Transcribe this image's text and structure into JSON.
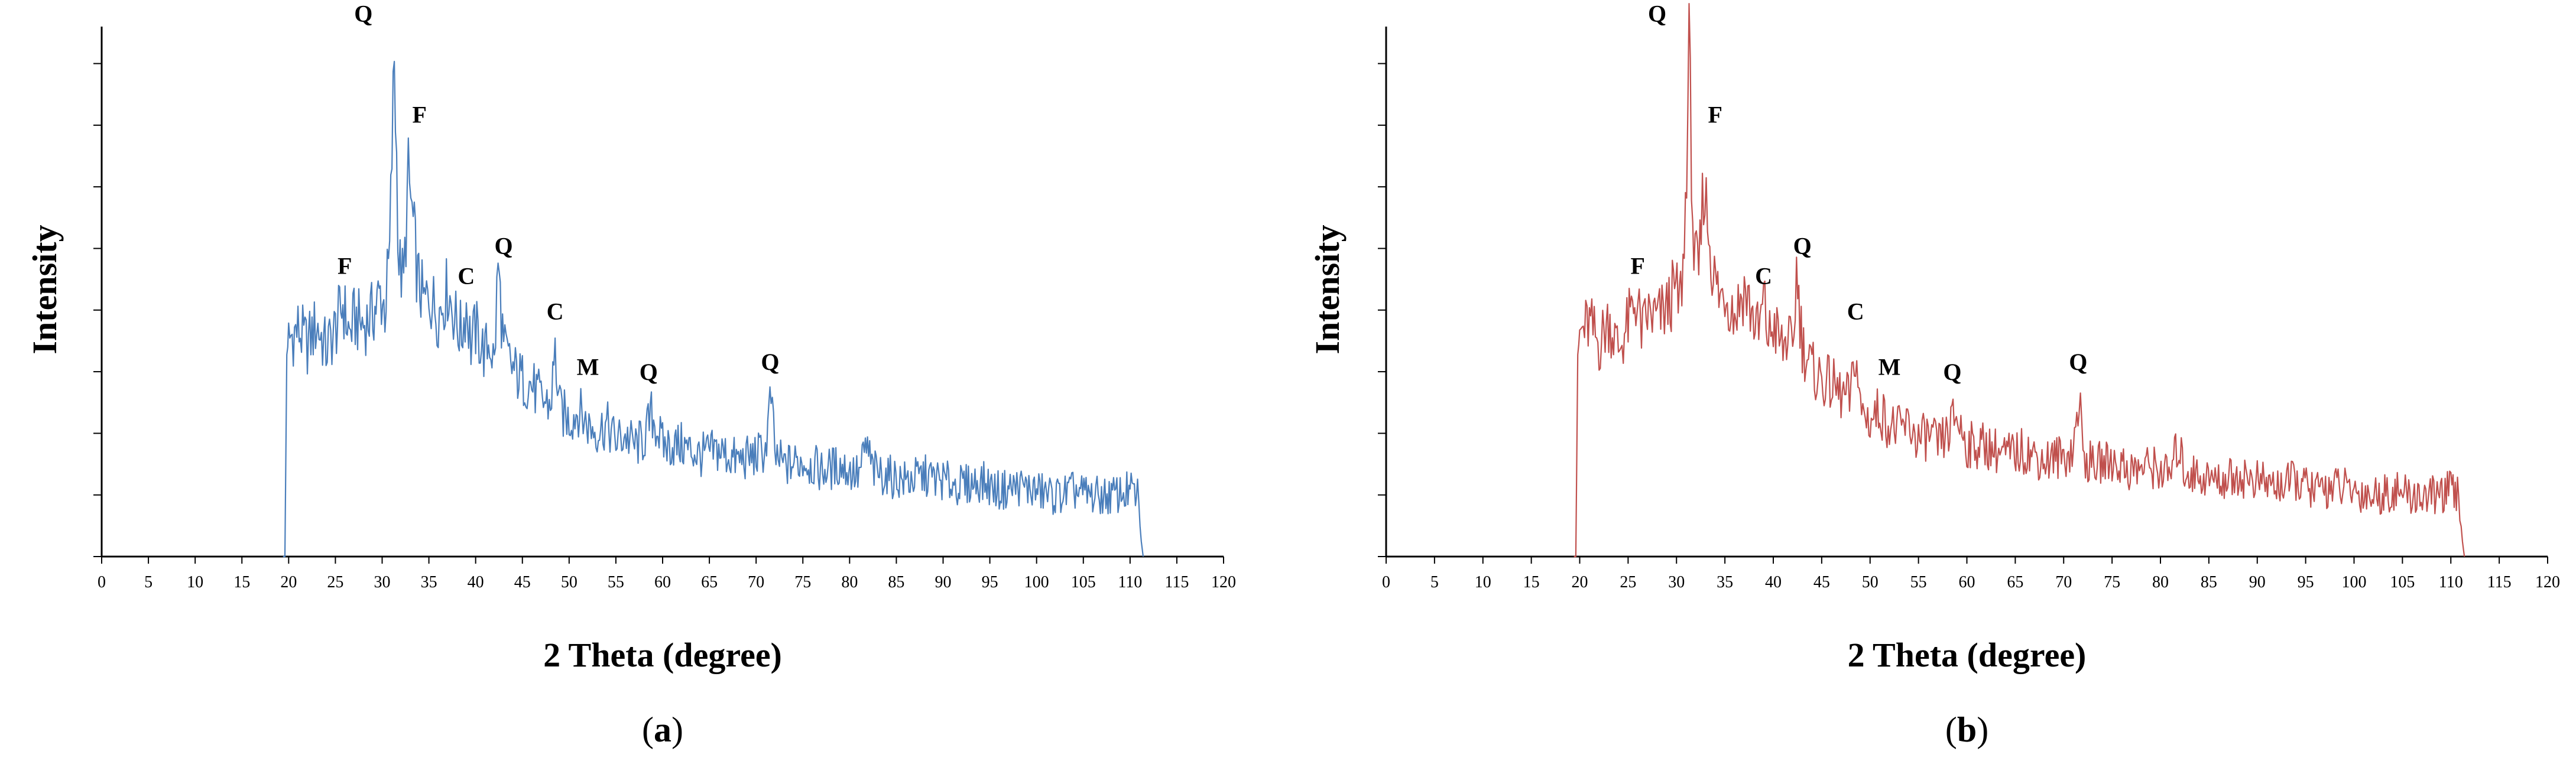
{
  "chart_data": [
    {
      "type": "line",
      "panel_label": "a",
      "xlabel": "2 Theta (degree)",
      "ylabel": "Intensity",
      "xlim": [
        0,
        120
      ],
      "xticks": [
        0,
        5,
        10,
        15,
        20,
        25,
        30,
        35,
        40,
        45,
        50,
        55,
        60,
        65,
        70,
        75,
        80,
        85,
        90,
        95,
        100,
        105,
        110,
        115,
        120
      ],
      "y_tick_labels_shown": false,
      "grid": false,
      "legend": "none",
      "color": "#4a7ebb",
      "series": [
        {
          "values_note": "relative intensity (no y-axis values printed), read on 0-100 scale",
          "x": [
            19.4,
            19.6,
            19.8,
            20,
            21,
            22,
            23,
            24,
            25,
            25.8,
            26.5,
            27,
            28,
            29,
            29.8,
            30.3,
            30.8,
            31.3,
            31.8,
            32.3,
            32.8,
            33.2,
            33.8,
            34.5,
            35,
            36,
            37,
            38,
            38.5,
            39,
            39.5,
            40,
            41,
            41.5,
            42,
            42.4,
            43,
            44,
            45,
            46,
            47,
            48,
            48.5,
            49,
            50,
            51,
            52,
            53,
            54,
            55,
            56,
            57,
            58,
            58.8,
            59.5,
            60,
            62,
            64,
            66,
            68,
            70,
            71,
            71.6,
            72,
            73,
            75,
            77,
            79,
            81,
            81.8,
            82.5,
            84,
            86,
            88,
            90,
            92,
            94,
            96,
            98,
            100,
            102,
            104,
            106,
            108,
            110,
            110.8,
            111.2,
            111.4
          ],
          "y": [
            0,
            0,
            40,
            43,
            45,
            42,
            46,
            41,
            45,
            50,
            44,
            47,
            46,
            48,
            52,
            49,
            60,
            99,
            58,
            54,
            75,
            68,
            55,
            50,
            52,
            48,
            53,
            46,
            44,
            50,
            42,
            45,
            40,
            43,
            38,
            58,
            41,
            37,
            35,
            34,
            31,
            30,
            40,
            29,
            27,
            29,
            26,
            25,
            26,
            23,
            24,
            22,
            23,
            28,
            25,
            22,
            22,
            20,
            21,
            19,
            20,
            21,
            32,
            20,
            18,
            19,
            17,
            18,
            16,
            22,
            17,
            16,
            15,
            16,
            15,
            14,
            15,
            13,
            14,
            13,
            12,
            13,
            12,
            12,
            13,
            12,
            3,
            0
          ]
        }
      ],
      "annotations": [
        {
          "label": "F",
          "x": 26
        },
        {
          "label": "Q",
          "x": 28
        },
        {
          "label": "F",
          "x": 34
        },
        {
          "label": "C",
          "x": 39
        },
        {
          "label": "Q",
          "x": 43
        },
        {
          "label": "C",
          "x": 48.5
        },
        {
          "label": "M",
          "x": 52
        },
        {
          "label": "Q",
          "x": 58.5
        },
        {
          "label": "Q",
          "x": 71.5
        }
      ]
    },
    {
      "type": "line",
      "panel_label": "b",
      "xlabel": "2 Theta (degree)",
      "ylabel": "Intensity",
      "xlim": [
        0,
        120
      ],
      "xticks": [
        0,
        5,
        10,
        15,
        20,
        25,
        30,
        35,
        40,
        45,
        50,
        55,
        60,
        65,
        70,
        75,
        80,
        85,
        90,
        95,
        100,
        105,
        110,
        115,
        120
      ],
      "y_tick_labels_shown": false,
      "grid": false,
      "legend": "none",
      "color": "#c0504d",
      "series": [
        {
          "values_note": "relative intensity (no y-axis values printed), read on 0-100 scale",
          "x": [
            19.4,
            19.6,
            19.8,
            20,
            21,
            22,
            23,
            24,
            25,
            25.8,
            26.5,
            27,
            28,
            29,
            29.8,
            30.3,
            30.8,
            31.3,
            31.8,
            32.3,
            32.8,
            33.2,
            33.8,
            34.5,
            35,
            36,
            37,
            38,
            38.5,
            39,
            39.5,
            40,
            41,
            41.5,
            42,
            42.4,
            43,
            44,
            45,
            46,
            47,
            48,
            48.5,
            49,
            50,
            51,
            52,
            53,
            54,
            55,
            56,
            57,
            58,
            58.8,
            59.5,
            60,
            62,
            64,
            66,
            68,
            70,
            71,
            71.6,
            72,
            73,
            75,
            77,
            79,
            81,
            81.8,
            82.5,
            84,
            86,
            88,
            90,
            92,
            94,
            96,
            98,
            100,
            102,
            104,
            106,
            108,
            110,
            110.8,
            111.2,
            111.4
          ],
          "y": [
            0,
            0,
            40,
            44,
            46,
            42,
            47,
            41,
            46,
            51,
            44,
            48,
            47,
            49,
            53,
            50,
            60,
            100,
            59,
            55,
            74,
            67,
            56,
            51,
            53,
            48,
            53,
            47,
            44,
            51,
            43,
            46,
            41,
            44,
            39,
            57,
            42,
            37,
            35,
            34,
            32,
            31,
            41,
            29,
            27,
            29,
            26,
            25,
            26,
            23,
            24,
            22,
            24,
            28,
            25,
            22,
            22,
            20,
            21,
            19,
            20,
            21,
            32,
            20,
            18,
            19,
            17,
            18,
            16,
            22,
            17,
            16,
            15,
            16,
            15,
            14,
            15,
            13,
            14,
            13,
            12,
            13,
            12,
            12,
            13,
            12,
            3,
            0
          ]
        }
      ],
      "annotations": [
        {
          "label": "F",
          "x": 26
        },
        {
          "label": "Q",
          "x": 28
        },
        {
          "label": "F",
          "x": 34
        },
        {
          "label": "C",
          "x": 39
        },
        {
          "label": "Q",
          "x": 43
        },
        {
          "label": "C",
          "x": 48.5
        },
        {
          "label": "M",
          "x": 52
        },
        {
          "label": "Q",
          "x": 58.5
        },
        {
          "label": "Q",
          "x": 71.5
        }
      ]
    }
  ]
}
